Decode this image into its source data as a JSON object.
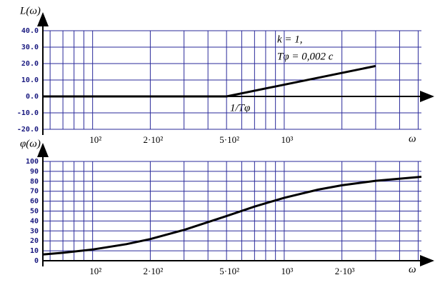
{
  "chart_data": [
    {
      "type": "line",
      "ylabel": "L(ω)",
      "xlabel": "ω",
      "log_x": true,
      "x": [
        55,
        500,
        3000
      ],
      "values": [
        0,
        0,
        18.5
      ],
      "color": "#000000",
      "xlim": [
        55,
        5200
      ],
      "xticks": [
        {
          "value": 100,
          "label": "10²"
        },
        {
          "value": 200,
          "label": "2·10²"
        },
        {
          "value": 500,
          "label": "5·10²"
        },
        {
          "value": 1000,
          "label": "10³"
        }
      ],
      "minor_xticks": [
        60,
        70,
        80,
        90,
        300,
        400,
        600,
        700,
        800,
        900,
        2000,
        3000,
        4000,
        5000
      ],
      "ylim": [
        -20,
        40
      ],
      "yticks": [
        {
          "value": 40,
          "label": "40.0"
        },
        {
          "value": 30,
          "label": "30.0"
        },
        {
          "value": 20,
          "label": "20.0"
        },
        {
          "value": 10,
          "label": "10.0"
        },
        {
          "value": 0,
          "label": "0.0"
        },
        {
          "value": -10,
          "label": "-10.0"
        },
        {
          "value": -20,
          "label": "-20.0"
        }
      ],
      "grid": true,
      "annotations": [
        "k = 1,",
        "Tφ = 0,002 c",
        "1/Tφ"
      ]
    },
    {
      "type": "line",
      "ylabel": "φ(ω)",
      "xlabel": "ω",
      "log_x": true,
      "x": [
        55,
        70,
        100,
        150,
        200,
        300,
        500,
        700,
        1000,
        1500,
        2000,
        3000,
        5200
      ],
      "values": [
        6.3,
        8,
        11.3,
        16.7,
        21.8,
        31,
        45,
        54.5,
        63.4,
        71.6,
        76,
        80.5,
        84.5
      ],
      "color": "#000000",
      "xlim": [
        55,
        5200
      ],
      "xticks": [
        {
          "value": 100,
          "label": "10²"
        },
        {
          "value": 200,
          "label": "2·10²"
        },
        {
          "value": 500,
          "label": "5·10²"
        },
        {
          "value": 1000,
          "label": "10³"
        },
        {
          "value": 2000,
          "label": "2·10³"
        }
      ],
      "minor_xticks": [
        60,
        70,
        80,
        90,
        300,
        400,
        600,
        700,
        800,
        900,
        3000,
        4000,
        5000
      ],
      "ylim": [
        0,
        100
      ],
      "yticks": [
        0,
        10,
        20,
        30,
        40,
        50,
        60,
        70,
        80,
        90,
        100
      ],
      "grid": true
    }
  ]
}
